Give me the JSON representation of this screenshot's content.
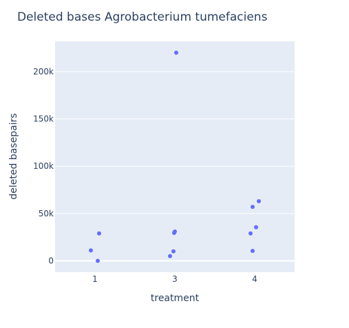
{
  "chart_data": {
    "type": "scatter",
    "title": "Deleted bases Agrobacterium tumefaciens",
    "xlabel": "treatment",
    "ylabel": "deleted basepairs",
    "x_categories": [
      "1",
      "3",
      "4"
    ],
    "y_ticks": [
      0,
      50000,
      100000,
      150000,
      200000
    ],
    "y_tick_labels": [
      "0",
      "50k",
      "100k",
      "150k",
      "200k"
    ],
    "ylim": [
      -12000,
      232000
    ],
    "grid": true,
    "series": [
      {
        "points": [
          {
            "x": "1",
            "y": 11000
          },
          {
            "x": "1",
            "y": 29000
          },
          {
            "x": "1",
            "y": 0
          },
          {
            "x": "3",
            "y": 220000
          },
          {
            "x": "3",
            "y": 31000
          },
          {
            "x": "3",
            "y": 29500
          },
          {
            "x": "3",
            "y": 10000
          },
          {
            "x": "3",
            "y": 5000
          },
          {
            "x": "4",
            "y": 63000
          },
          {
            "x": "4",
            "y": 57000
          },
          {
            "x": "4",
            "y": 35500
          },
          {
            "x": "4",
            "y": 29000
          },
          {
            "x": "4",
            "y": 10500
          }
        ]
      }
    ],
    "colors": {
      "plot_background": "#e5ecf6",
      "marker": "#636efa",
      "grid": "#ffffff",
      "text": "#2a3f5f"
    }
  }
}
